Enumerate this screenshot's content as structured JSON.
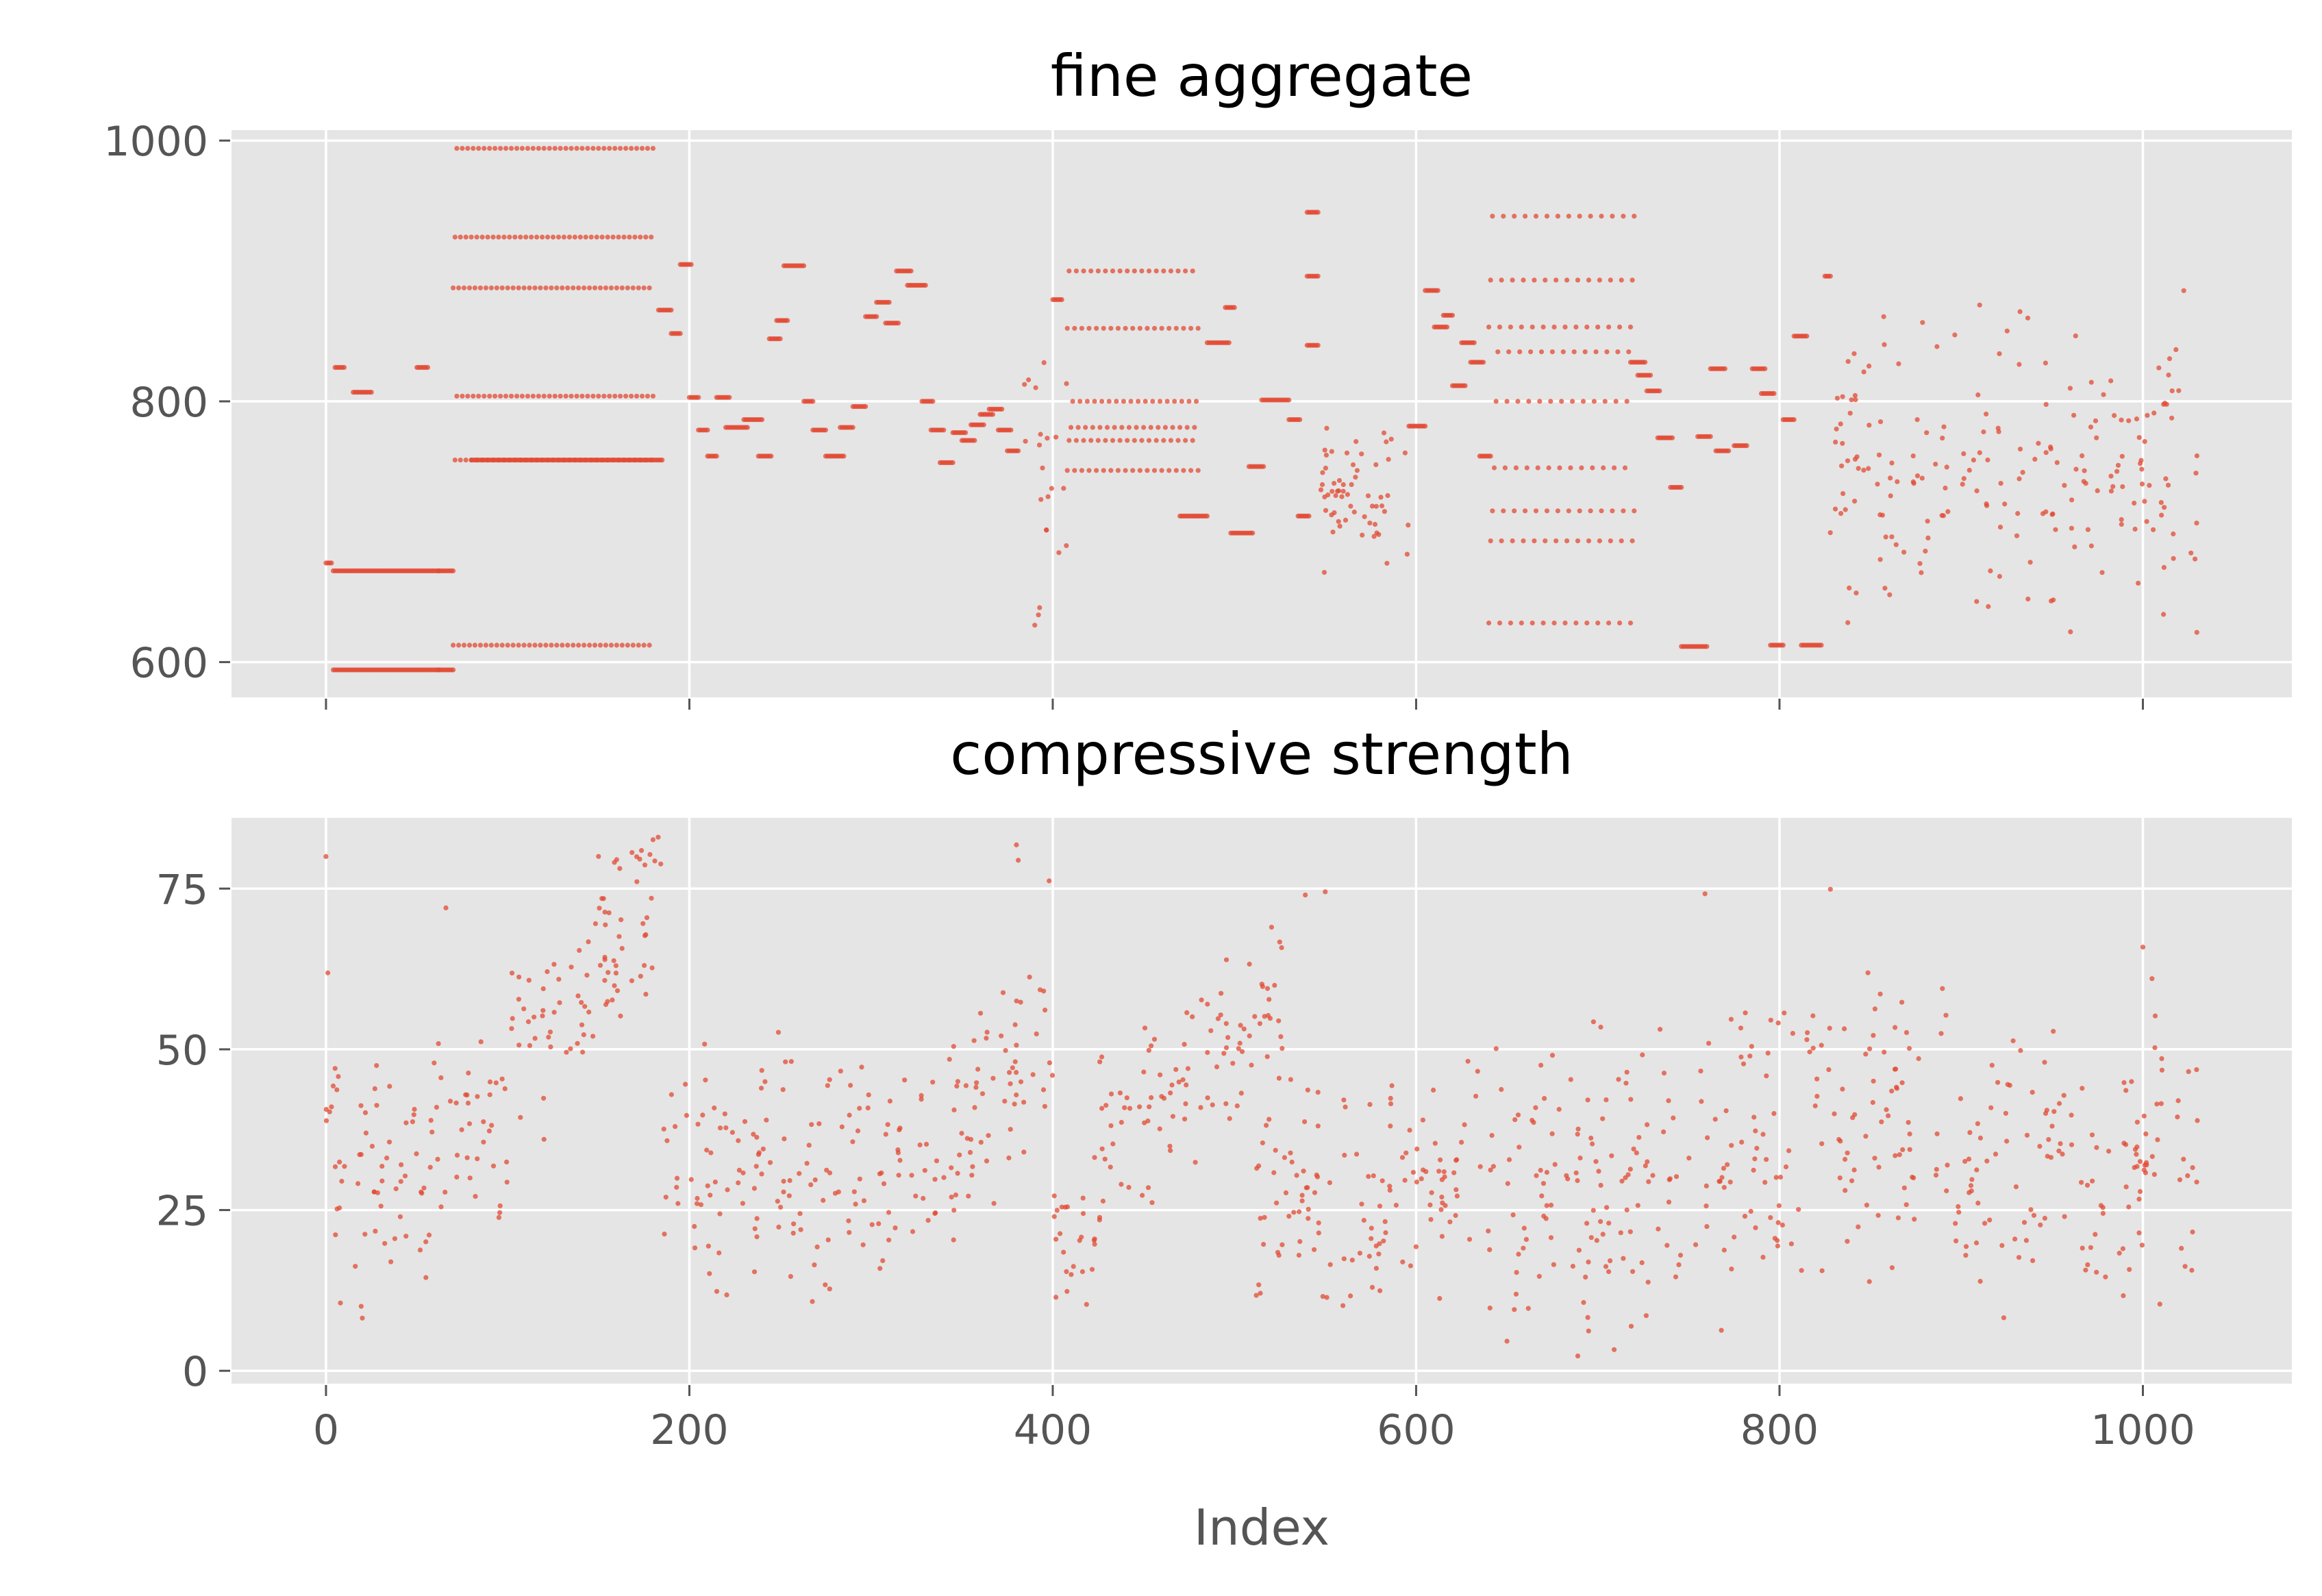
{
  "chart_data": [
    {
      "type": "scatter",
      "title": "fine aggregate",
      "xlabel": "",
      "ylabel": "",
      "xlim": [
        -52,
        1082
      ],
      "ylim": [
        573,
        1008
      ],
      "xticks": [
        0,
        200,
        400,
        600,
        800,
        1000
      ],
      "xtick_labels_visible": false,
      "yticks": [
        600,
        800,
        1000
      ],
      "ytick_labels": [
        "600",
        "800",
        "1000"
      ],
      "grid": true,
      "marker_color": "#E24A33",
      "background": "#E5E5E5",
      "series": [
        {
          "segments": [
            {
              "x0": 0,
              "x1": 3,
              "ys": [
                676
              ]
            },
            {
              "x0": 4,
              "x1": 62,
              "ys": [
                594,
                670
              ]
            },
            {
              "x0": 62,
              "x1": 70,
              "ys": [
                594,
                670
              ]
            },
            {
              "x0": 5,
              "x1": 10,
              "ys": [
                826
              ]
            },
            {
              "x0": 15,
              "x1": 25,
              "ys": [
                807
              ]
            },
            {
              "x0": 50,
              "x1": 56,
              "ys": [
                826
              ]
            },
            {
              "x0": 70,
              "x1": 180,
              "ys": [
                613,
                755,
                804,
                887,
                926,
                994
              ],
              "step": 3
            },
            {
              "x0": 80,
              "x1": 185,
              "ys": [
                755
              ],
              "step": 1
            },
            {
              "x0": 183,
              "x1": 190,
              "ys": [
                870
              ]
            },
            {
              "x0": 190,
              "x1": 195,
              "ys": [
                852
              ]
            },
            {
              "x0": 195,
              "x1": 201,
              "ys": [
                905
              ]
            },
            {
              "x0": 200,
              "x1": 205,
              "ys": [
                803
              ]
            },
            {
              "x0": 205,
              "x1": 210,
              "ys": [
                778
              ]
            },
            {
              "x0": 210,
              "x1": 215,
              "ys": [
                758
              ]
            },
            {
              "x0": 215,
              "x1": 222,
              "ys": [
                803
              ]
            },
            {
              "x0": 220,
              "x1": 232,
              "ys": [
                780
              ]
            },
            {
              "x0": 230,
              "x1": 240,
              "ys": [
                786
              ]
            },
            {
              "x0": 238,
              "x1": 245,
              "ys": [
                758
              ]
            },
            {
              "x0": 244,
              "x1": 250,
              "ys": [
                848
              ]
            },
            {
              "x0": 248,
              "x1": 254,
              "ys": [
                862
              ]
            },
            {
              "x0": 252,
              "x1": 263,
              "ys": [
                904
              ]
            },
            {
              "x0": 263,
              "x1": 268,
              "ys": [
                800
              ]
            },
            {
              "x0": 268,
              "x1": 275,
              "ys": [
                778
              ]
            },
            {
              "x0": 275,
              "x1": 285,
              "ys": [
                758
              ]
            },
            {
              "x0": 283,
              "x1": 290,
              "ys": [
                780
              ]
            },
            {
              "x0": 290,
              "x1": 297,
              "ys": [
                796
              ]
            },
            {
              "x0": 297,
              "x1": 303,
              "ys": [
                865
              ]
            },
            {
              "x0": 303,
              "x1": 310,
              "ys": [
                876
              ]
            },
            {
              "x0": 308,
              "x1": 315,
              "ys": [
                860
              ]
            },
            {
              "x0": 314,
              "x1": 322,
              "ys": [
                900
              ]
            },
            {
              "x0": 320,
              "x1": 330,
              "ys": [
                889
              ]
            },
            {
              "x0": 328,
              "x1": 334,
              "ys": [
                800
              ]
            },
            {
              "x0": 333,
              "x1": 340,
              "ys": [
                778
              ]
            },
            {
              "x0": 338,
              "x1": 345,
              "ys": [
                753
              ]
            },
            {
              "x0": 345,
              "x1": 352,
              "ys": [
                776
              ]
            },
            {
              "x0": 350,
              "x1": 357,
              "ys": [
                770
              ]
            },
            {
              "x0": 355,
              "x1": 362,
              "ys": [
                782
              ]
            },
            {
              "x0": 360,
              "x1": 367,
              "ys": [
                790
              ]
            },
            {
              "x0": 365,
              "x1": 372,
              "ys": [
                794
              ]
            },
            {
              "x0": 370,
              "x1": 377,
              "ys": [
                778
              ]
            },
            {
              "x0": 375,
              "x1": 381,
              "ys": [
                762
              ]
            },
            {
              "x0": 400,
              "x1": 405,
              "ys": [
                878
              ]
            },
            {
              "x0": 408,
              "x1": 480,
              "ys": [
                747,
                770,
                780,
                800,
                856,
                900
              ],
              "step": 4
            },
            {
              "x0": 470,
              "x1": 485,
              "ys": [
                712
              ]
            },
            {
              "x0": 485,
              "x1": 497,
              "ys": [
                845
              ]
            },
            {
              "x0": 495,
              "x1": 500,
              "ys": [
                872
              ]
            },
            {
              "x0": 498,
              "x1": 510,
              "ys": [
                699
              ]
            },
            {
              "x0": 508,
              "x1": 516,
              "ys": [
                750
              ]
            },
            {
              "x0": 515,
              "x1": 530,
              "ys": [
                801
              ]
            },
            {
              "x0": 530,
              "x1": 536,
              "ys": [
                786
              ]
            },
            {
              "x0": 535,
              "x1": 541,
              "ys": [
                712
              ]
            },
            {
              "x0": 540,
              "x1": 546,
              "ys": [
                945
              ]
            },
            {
              "x0": 540,
              "x1": 546,
              "ys": [
                843,
                896
              ]
            },
            {
              "x0": 596,
              "x1": 605,
              "ys": [
                781
              ]
            },
            {
              "x0": 605,
              "x1": 612,
              "ys": [
                885
              ]
            },
            {
              "x0": 610,
              "x1": 617,
              "ys": [
                857
              ]
            },
            {
              "x0": 615,
              "x1": 620,
              "ys": [
                866
              ]
            },
            {
              "x0": 620,
              "x1": 627,
              "ys": [
                812
              ]
            },
            {
              "x0": 625,
              "x1": 632,
              "ys": [
                845
              ]
            },
            {
              "x0": 630,
              "x1": 637,
              "ys": [
                830
              ]
            },
            {
              "x0": 635,
              "x1": 641,
              "ys": [
                758
              ]
            },
            {
              "x0": 640,
              "x1": 720,
              "ys": [
                630,
                693,
                716,
                749,
                800,
                838,
                857,
                893,
                942
              ],
              "step": 6
            },
            {
              "x0": 718,
              "x1": 726,
              "ys": [
                830
              ]
            },
            {
              "x0": 722,
              "x1": 729,
              "ys": [
                820
              ]
            },
            {
              "x0": 727,
              "x1": 734,
              "ys": [
                808
              ]
            },
            {
              "x0": 733,
              "x1": 741,
              "ys": [
                772
              ]
            },
            {
              "x0": 740,
              "x1": 746,
              "ys": [
                734
              ]
            },
            {
              "x0": 746,
              "x1": 760,
              "ys": [
                612
              ]
            },
            {
              "x0": 755,
              "x1": 762,
              "ys": [
                773
              ]
            },
            {
              "x0": 762,
              "x1": 770,
              "ys": [
                825
              ]
            },
            {
              "x0": 765,
              "x1": 772,
              "ys": [
                762
              ]
            },
            {
              "x0": 775,
              "x1": 782,
              "ys": [
                766
              ]
            },
            {
              "x0": 785,
              "x1": 792,
              "ys": [
                825
              ]
            },
            {
              "x0": 790,
              "x1": 797,
              "ys": [
                806
              ]
            },
            {
              "x0": 795,
              "x1": 802,
              "ys": [
                613
              ]
            },
            {
              "x0": 802,
              "x1": 808,
              "ys": [
                786
              ]
            },
            {
              "x0": 808,
              "x1": 815,
              "ys": [
                850
              ]
            },
            {
              "x0": 812,
              "x1": 823,
              "ys": [
                613
              ]
            },
            {
              "x0": 825,
              "x1": 828,
              "ys": [
                896
              ]
            }
          ],
          "random_bands": [
            {
              "x0": 380,
              "x1": 408,
              "ymin": 612,
              "ymax": 880,
              "n": 22,
              "seed": 7
            },
            {
              "x0": 546,
              "x1": 596,
              "ymin": 665,
              "ymax": 790,
              "n": 60,
              "seed": 11
            },
            {
              "x0": 826,
              "x1": 1030,
              "ymin": 610,
              "ymax": 895,
              "n": 200,
              "seed": 23
            }
          ]
        }
      ]
    },
    {
      "type": "scatter",
      "title": "compressive strength",
      "xlabel": "Index",
      "ylabel": "",
      "xlim": [
        -52,
        1082
      ],
      "ylim": [
        -2,
        86
      ],
      "xticks": [
        0,
        200,
        400,
        600,
        800,
        1000
      ],
      "xtick_labels": [
        "0",
        "200",
        "400",
        "600",
        "800",
        "1000"
      ],
      "yticks": [
        0,
        25,
        50,
        75
      ],
      "ytick_labels": [
        "0",
        "25",
        "50",
        "75"
      ],
      "grid": true,
      "marker_color": "#E24A33",
      "background": "#E5E5E5",
      "series": [
        {
          "highlight_points": [
            [
              0,
              79.99
            ],
            [
              1,
              61.89
            ],
            [
              2,
              40.27
            ],
            [
              3,
              41.05
            ],
            [
              4,
              44.3
            ],
            [
              5,
              47.03
            ],
            [
              6,
              43.7
            ],
            [
              20,
              8.2
            ],
            [
              55,
              14.5
            ],
            [
              66,
              72
            ],
            [
              120,
              36
            ],
            [
              150,
              80
            ],
            [
              160,
              79.5
            ],
            [
              180,
              82.6
            ],
            [
              181,
              79.3
            ],
            [
              380,
              81.8
            ],
            [
              381,
              79.4
            ],
            [
              398,
              76.2
            ],
            [
              539,
              74
            ],
            [
              550,
              74.5
            ],
            [
              759,
              74.2
            ],
            [
              828,
              74.9
            ],
            [
              1000,
              65.9
            ],
            [
              1005,
              61
            ],
            [
              689,
              2.3
            ],
            [
              709,
              3.3
            ],
            [
              650,
              4.6
            ],
            [
              768,
              6.3
            ]
          ],
          "random_bands": [
            {
              "x0": 0,
              "x1": 70,
              "ymin": 8,
              "ymax": 55,
              "n": 65,
              "seed": 101
            },
            {
              "x0": 70,
              "x1": 100,
              "ymin": 22,
              "ymax": 55,
              "n": 30,
              "seed": 102
            },
            {
              "x0": 100,
              "x1": 185,
              "ymin": 35,
              "ymax": 83,
              "n": 85,
              "seed": 103,
              "trend": [
                45,
                75
              ]
            },
            {
              "x0": 185,
              "x1": 300,
              "ymin": 7,
              "ymax": 54,
              "n": 115,
              "seed": 104
            },
            {
              "x0": 300,
              "x1": 400,
              "ymin": 13,
              "ymax": 67,
              "n": 100,
              "seed": 105,
              "trend": [
                25,
                52
              ]
            },
            {
              "x0": 400,
              "x1": 425,
              "ymin": 8,
              "ymax": 35,
              "n": 25,
              "seed": 106
            },
            {
              "x0": 425,
              "x1": 530,
              "ymin": 22,
              "ymax": 69,
              "n": 100,
              "seed": 107,
              "trend": [
                35,
                58
              ]
            },
            {
              "x0": 510,
              "x1": 620,
              "ymin": 6,
              "ymax": 48,
              "n": 115,
              "seed": 108
            },
            {
              "x0": 620,
              "x1": 760,
              "ymin": 3,
              "ymax": 55,
              "n": 140,
              "seed": 109
            },
            {
              "x0": 760,
              "x1": 900,
              "ymin": 8,
              "ymax": 66,
              "n": 140,
              "seed": 110
            },
            {
              "x0": 900,
              "x1": 1030,
              "ymin": 8,
              "ymax": 57,
              "n": 130,
              "seed": 111
            }
          ]
        }
      ]
    }
  ]
}
